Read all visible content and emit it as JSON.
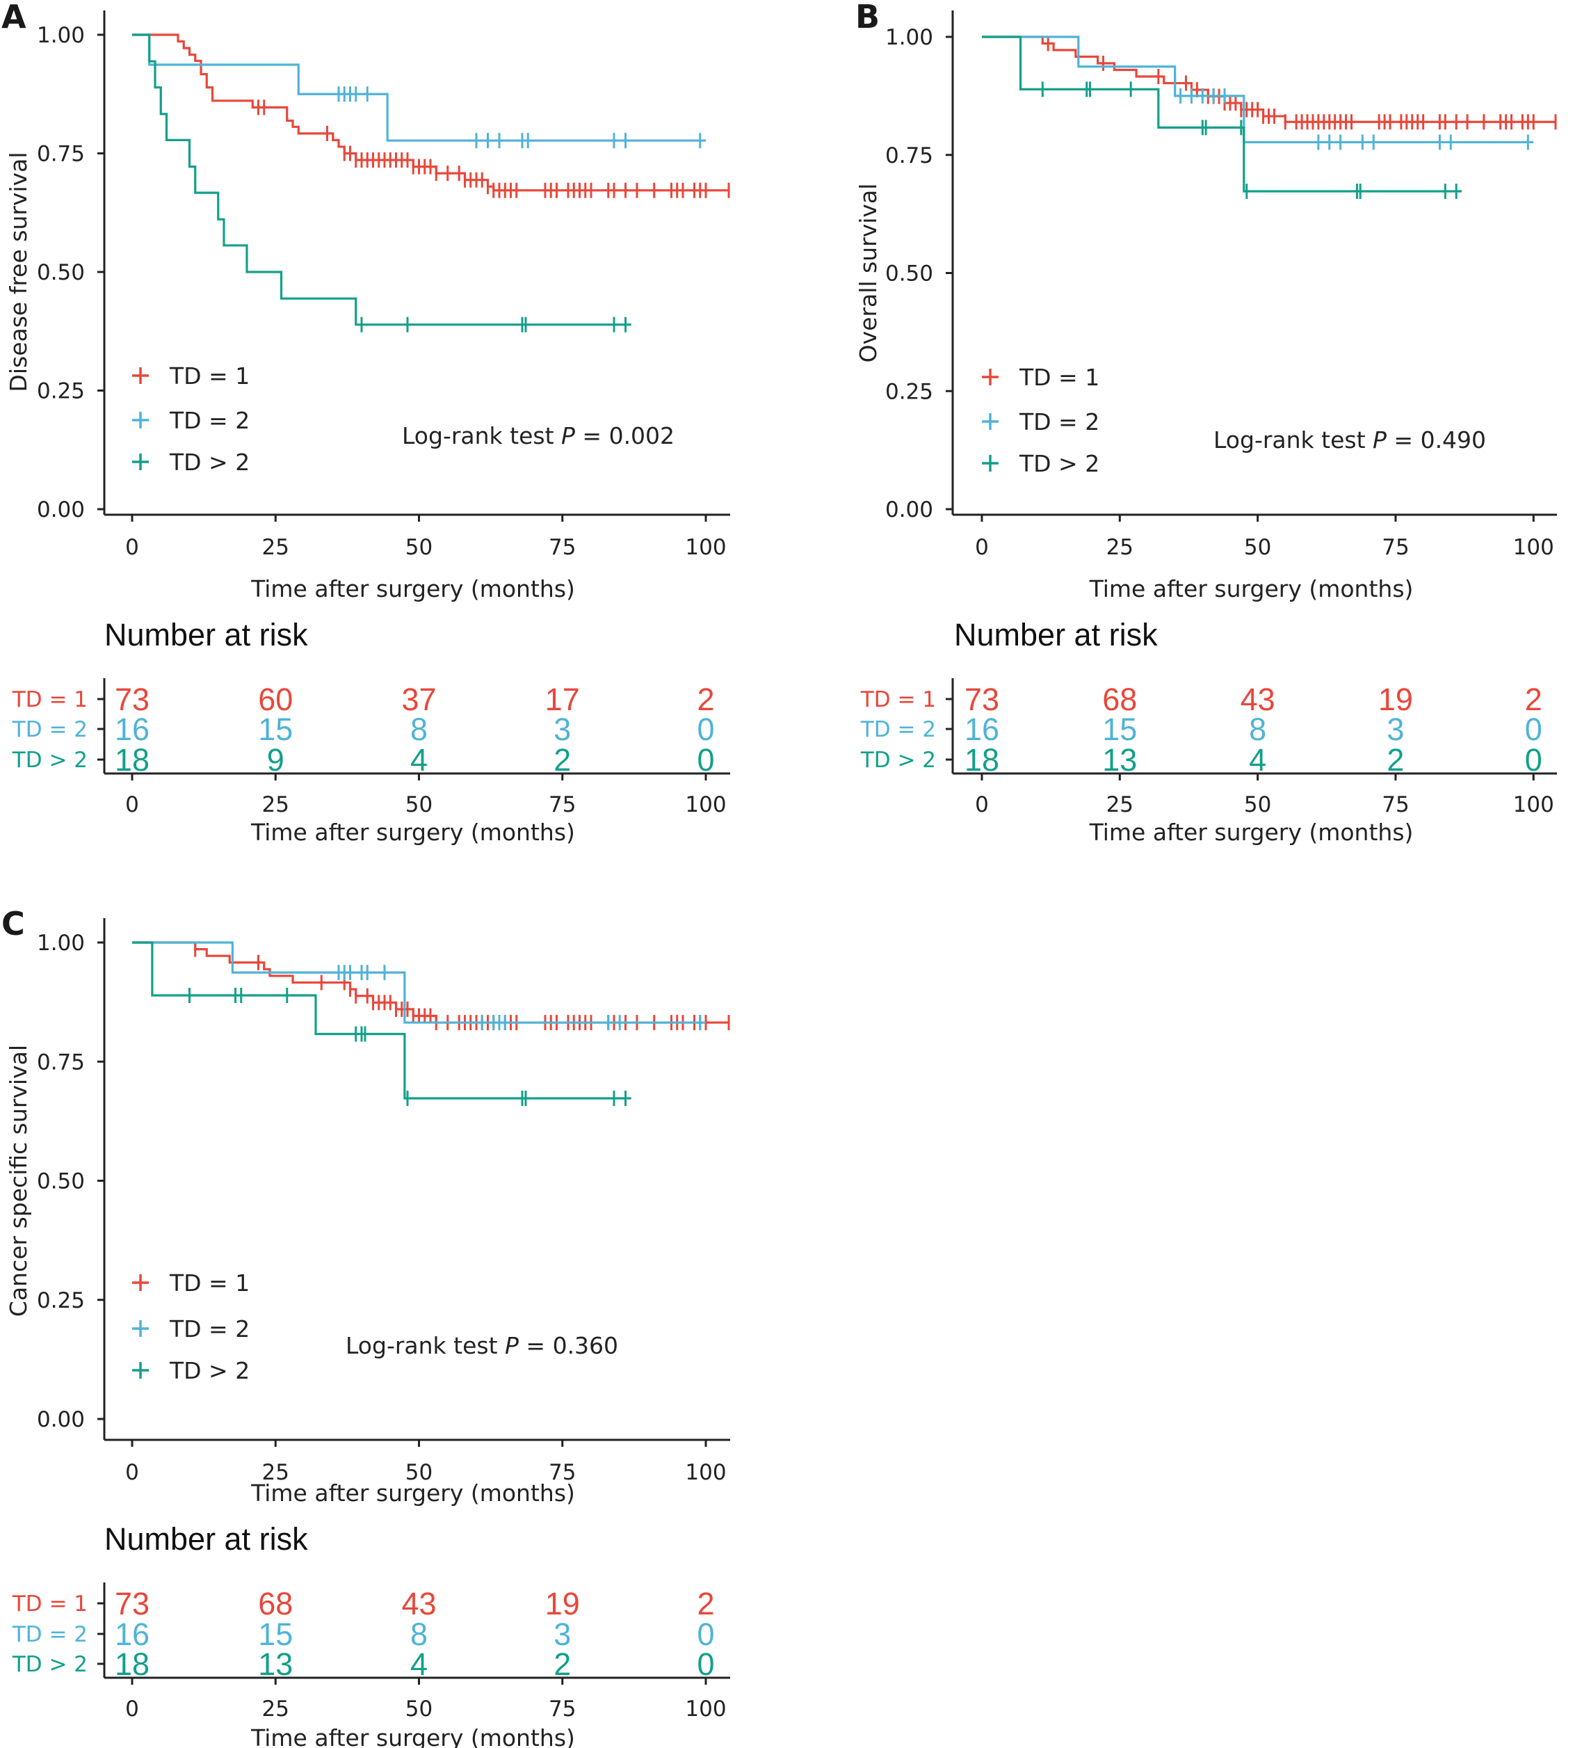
{
  "colors": {
    "td1": "#e8473a",
    "td2": "#4fb3d8",
    "td3": "#12a08a",
    "axis": "#222222"
  },
  "common": {
    "x_axis_title": "Time after surgery (months)",
    "x_ticks": [
      "0",
      "25",
      "50",
      "75",
      "100"
    ],
    "y_ticks": [
      "0.00",
      "0.25",
      "0.50",
      "0.75",
      "1.00"
    ],
    "risk_title": "Number at risk",
    "legend": [
      "TD = 1",
      "TD = 2",
      "TD > 2"
    ],
    "logrank_prefix": "Log-rank test",
    "p_symbol": "P"
  },
  "chart_data": [
    {
      "panel": "A",
      "type": "line",
      "ylabel": "Disease free survival",
      "xlabel": "Time after surgery (months)",
      "xlim": [
        0,
        104
      ],
      "ylim": [
        0,
        1
      ],
      "p_value_text": "= 0.002",
      "series": [
        {
          "name": "TD = 1",
          "steps": [
            [
              0,
              1.0
            ],
            [
              8,
              0.986
            ],
            [
              9,
              0.972
            ],
            [
              10,
              0.958
            ],
            [
              11,
              0.945
            ],
            [
              12,
              0.917
            ],
            [
              13,
              0.889
            ],
            [
              14,
              0.861
            ],
            [
              21,
              0.847
            ],
            [
              27,
              0.819
            ],
            [
              28,
              0.806
            ],
            [
              29,
              0.792
            ],
            [
              35,
              0.778
            ],
            [
              36,
              0.764
            ],
            [
              37,
              0.75
            ],
            [
              39,
              0.736
            ],
            [
              49,
              0.722
            ],
            [
              53,
              0.708
            ],
            [
              58,
              0.694
            ],
            [
              62,
              0.68
            ],
            [
              63,
              0.672
            ],
            [
              104,
              0.672
            ]
          ],
          "censor": [
            22,
            23,
            34,
            37,
            38,
            39,
            40,
            41,
            42,
            43,
            44,
            45,
            46,
            47,
            48,
            49,
            50,
            51,
            52,
            53,
            55,
            57,
            58,
            59,
            60,
            61,
            62,
            63,
            64,
            65,
            66,
            67,
            72,
            73,
            74,
            76,
            77,
            78,
            79,
            80,
            83,
            84,
            86,
            88,
            91,
            94,
            95,
            96,
            98,
            99,
            100,
            104
          ]
        },
        {
          "name": "TD = 2",
          "steps": [
            [
              0,
              1.0
            ],
            [
              3,
              0.937
            ],
            [
              29,
              0.875
            ],
            [
              44.5,
              0.777
            ],
            [
              100,
              0.777
            ]
          ],
          "censor": [
            36,
            37,
            38,
            39,
            41,
            60,
            62,
            64,
            68,
            69,
            84,
            86,
            99
          ]
        },
        {
          "name": "TD > 2",
          "steps": [
            [
              0,
              1.0
            ],
            [
              3,
              0.944
            ],
            [
              4,
              0.889
            ],
            [
              5,
              0.833
            ],
            [
              6,
              0.778
            ],
            [
              10,
              0.722
            ],
            [
              11,
              0.667
            ],
            [
              15,
              0.611
            ],
            [
              16,
              0.556
            ],
            [
              20,
              0.5
            ],
            [
              26,
              0.444
            ],
            [
              39,
              0.389
            ],
            [
              87,
              0.389
            ]
          ],
          "censor": [
            40,
            48,
            68,
            68.6,
            84,
            86
          ]
        }
      ],
      "risk_table": {
        "x": [
          0,
          25,
          50,
          75,
          100
        ],
        "TD = 1": [
          73,
          60,
          37,
          17,
          2
        ],
        "TD = 2": [
          16,
          15,
          8,
          3,
          0
        ],
        "TD > 2": [
          18,
          9,
          4,
          2,
          0
        ]
      }
    },
    {
      "panel": "B",
      "type": "line",
      "ylabel": "Overall survival",
      "xlabel": "Time after surgery (months)",
      "xlim": [
        0,
        104
      ],
      "ylim": [
        0,
        1
      ],
      "p_value_text": "= 0.490",
      "series": [
        {
          "name": "TD = 1",
          "steps": [
            [
              0,
              1.0
            ],
            [
              11,
              0.986
            ],
            [
              13,
              0.972
            ],
            [
              17,
              0.958
            ],
            [
              21,
              0.944
            ],
            [
              24,
              0.93
            ],
            [
              28,
              0.916
            ],
            [
              33,
              0.902
            ],
            [
              38,
              0.888
            ],
            [
              41,
              0.874
            ],
            [
              44,
              0.86
            ],
            [
              47,
              0.846
            ],
            [
              51,
              0.832
            ],
            [
              55,
              0.82
            ],
            [
              104,
              0.82
            ]
          ],
          "censor": [
            12,
            22,
            32,
            35,
            37,
            38,
            39,
            41,
            42,
            43,
            44,
            45,
            46,
            47,
            48,
            49,
            50,
            51,
            52,
            53,
            55,
            57,
            58,
            59,
            60,
            61,
            62,
            63,
            64,
            65,
            66,
            67,
            72,
            73,
            74,
            76,
            77,
            78,
            79,
            80,
            83,
            84,
            86,
            88,
            91,
            94,
            95,
            96,
            98,
            99,
            100,
            104
          ]
        },
        {
          "name": "TD = 2",
          "steps": [
            [
              0,
              1.0
            ],
            [
              17.5,
              0.937
            ],
            [
              35,
              0.875
            ],
            [
              47.5,
              0.777
            ],
            [
              100,
              0.777
            ]
          ],
          "censor": [
            36,
            38,
            40,
            42,
            44,
            61,
            63,
            65,
            69,
            71,
            83,
            85,
            99
          ]
        },
        {
          "name": "TD > 2",
          "steps": [
            [
              0,
              1.0
            ],
            [
              7,
              0.889
            ],
            [
              32,
              0.808
            ],
            [
              47.5,
              0.673
            ],
            [
              87,
              0.673
            ]
          ],
          "censor": [
            11,
            19,
            19.6,
            27,
            40,
            40.6,
            47,
            48,
            68,
            68.6,
            84,
            86
          ]
        }
      ],
      "risk_table": {
        "x": [
          0,
          25,
          50,
          75,
          100
        ],
        "TD = 1": [
          73,
          68,
          43,
          19,
          2
        ],
        "TD = 2": [
          16,
          15,
          8,
          3,
          0
        ],
        "TD > 2": [
          18,
          13,
          4,
          2,
          0
        ]
      }
    },
    {
      "panel": "C",
      "type": "line",
      "ylabel": "Cancer specific survival",
      "xlabel": "Time after surgery (months)",
      "xlim": [
        0,
        104
      ],
      "ylim": [
        0,
        1
      ],
      "p_value_text": "= 0.360",
      "series": [
        {
          "name": "TD = 1",
          "steps": [
            [
              0,
              1.0
            ],
            [
              11,
              0.986
            ],
            [
              13,
              0.972
            ],
            [
              17,
              0.958
            ],
            [
              23,
              0.944
            ],
            [
              24,
              0.93
            ],
            [
              28,
              0.916
            ],
            [
              38,
              0.902
            ],
            [
              39,
              0.888
            ],
            [
              42,
              0.874
            ],
            [
              46,
              0.86
            ],
            [
              49,
              0.846
            ],
            [
              53,
              0.832
            ],
            [
              104,
              0.832
            ]
          ],
          "censor": [
            11,
            22,
            33,
            37,
            38,
            39,
            41,
            42,
            43,
            44,
            45,
            46,
            47,
            48,
            49,
            50,
            51,
            52,
            53,
            55,
            57,
            58,
            59,
            60,
            61,
            62,
            63,
            64,
            65,
            66,
            67,
            72,
            73,
            74,
            76,
            77,
            78,
            79,
            80,
            83,
            84,
            86,
            88,
            91,
            94,
            95,
            96,
            98,
            99,
            100,
            104
          ]
        },
        {
          "name": "TD = 2",
          "steps": [
            [
              0,
              1.0
            ],
            [
              17.5,
              0.937
            ],
            [
              35,
              0.937
            ],
            [
              47.5,
              0.832
            ],
            [
              100,
              0.832
            ]
          ],
          "censor": [
            36,
            37,
            38,
            40,
            41,
            44,
            61,
            63,
            64,
            65,
            83,
            85,
            99
          ]
        },
        {
          "name": "TD > 2",
          "steps": [
            [
              0,
              1.0
            ],
            [
              3.5,
              0.889
            ],
            [
              32,
              0.808
            ],
            [
              47.5,
              0.673
            ],
            [
              87,
              0.673
            ]
          ],
          "censor": [
            10,
            18,
            19,
            27,
            39,
            40,
            40.6,
            48,
            68,
            68.6,
            84,
            86
          ]
        }
      ],
      "risk_table": {
        "x": [
          0,
          25,
          50,
          75,
          100
        ],
        "TD = 1": [
          73,
          68,
          43,
          19,
          2
        ],
        "TD = 2": [
          16,
          15,
          8,
          3,
          0
        ],
        "TD > 2": [
          18,
          13,
          4,
          2,
          0
        ]
      }
    }
  ]
}
